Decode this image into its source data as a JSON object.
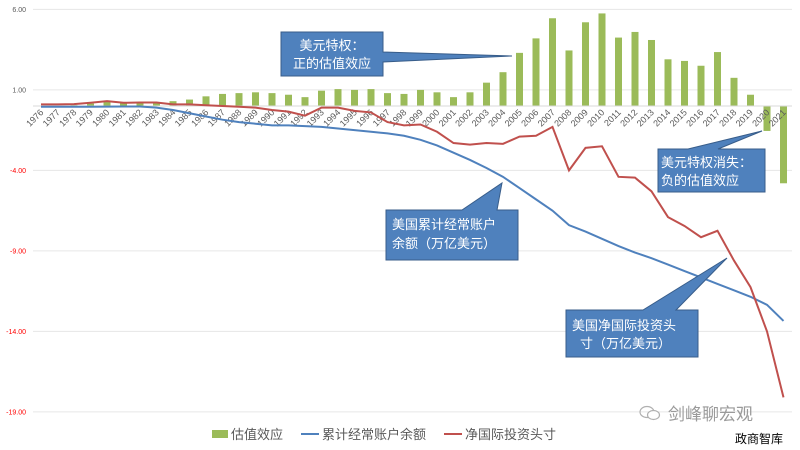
{
  "chart_data": {
    "type": "bar+line",
    "title": "",
    "xlabel": "",
    "ylabel": "",
    "ylim": [
      -19,
      6
    ],
    "yticks": [
      "6.00",
      "1.00",
      "-4.00",
      "-9.00",
      "-14.00",
      "-19.00"
    ],
    "grid": true,
    "legend_position": "bottom",
    "categories": [
      "1976",
      "1977",
      "1978",
      "1979",
      "1980",
      "1981",
      "1982",
      "1983",
      "1984",
      "1985",
      "1986",
      "1987",
      "1988",
      "1989",
      "1990",
      "1991",
      "1992",
      "1993",
      "1994",
      "1995",
      "1996",
      "1997",
      "1998",
      "1999",
      "2000",
      "2001",
      "2002",
      "2003",
      "2004",
      "2005",
      "2006",
      "2007",
      "2008",
      "2009",
      "2010",
      "2011",
      "2012",
      "2013",
      "2014",
      "2015",
      "2016",
      "2017",
      "2018",
      "2019",
      "2020",
      "2021"
    ],
    "series": [
      {
        "name": "估值效应",
        "type": "bar",
        "color": "#9bbb59",
        "values": [
          0.0,
          0.02,
          0.05,
          0.15,
          0.25,
          0.2,
          0.2,
          0.2,
          0.3,
          0.4,
          0.6,
          0.75,
          0.8,
          0.85,
          0.8,
          0.7,
          0.55,
          0.95,
          1.05,
          1.0,
          1.05,
          0.8,
          0.75,
          1.0,
          0.85,
          0.55,
          0.85,
          1.45,
          2.1,
          3.3,
          4.2,
          5.45,
          3.45,
          5.2,
          5.75,
          4.25,
          4.6,
          4.1,
          2.9,
          2.8,
          2.5,
          3.35,
          1.75,
          0.7,
          -1.55,
          -4.8
        ]
      },
      {
        "name": "累计经常账户余额",
        "type": "line",
        "color": "#4f81bd",
        "values": [
          -0.05,
          -0.05,
          -0.05,
          -0.05,
          -0.04,
          -0.03,
          -0.03,
          -0.1,
          -0.25,
          -0.45,
          -0.65,
          -0.85,
          -1.0,
          -1.1,
          -1.2,
          -1.2,
          -1.25,
          -1.3,
          -1.4,
          -1.5,
          -1.6,
          -1.7,
          -1.85,
          -2.1,
          -2.45,
          -2.9,
          -3.35,
          -3.85,
          -4.4,
          -5.1,
          -5.8,
          -6.5,
          -7.4,
          -7.8,
          -8.25,
          -8.7,
          -9.1,
          -9.45,
          -9.85,
          -10.25,
          -10.65,
          -11.05,
          -11.45,
          -11.85,
          -12.35,
          -13.35
        ]
      },
      {
        "name": "净国际投资头寸",
        "type": "line",
        "color": "#c0504d",
        "values": [
          0.1,
          0.1,
          0.12,
          0.2,
          0.3,
          0.2,
          0.22,
          0.22,
          0.1,
          0.1,
          0.05,
          0.0,
          -0.05,
          -0.1,
          -0.25,
          -0.35,
          -0.6,
          -0.1,
          -0.1,
          -0.3,
          -0.4,
          -1.0,
          -1.2,
          -1.15,
          -1.6,
          -2.3,
          -2.4,
          -2.3,
          -2.35,
          -1.9,
          -1.85,
          -1.3,
          -4.0,
          -2.6,
          -2.5,
          -4.4,
          -4.45,
          -5.3,
          -6.9,
          -7.45,
          -8.15,
          -7.75,
          -9.6,
          -11.25,
          -14.0,
          -18.1
        ]
      }
    ],
    "annotations": [
      {
        "text": "美元特权：\n正的估值效应",
        "points_to": "2005"
      },
      {
        "text": "美国累计经常账户\n余额（万亿美元）",
        "points_to": "blue line ~2004"
      },
      {
        "text": "美元特权消失：\n负的估值效应",
        "points_to": "2020"
      },
      {
        "text": "美国净国际投资头\n寸（万亿美元）",
        "points_to": "red line ~2018"
      }
    ]
  },
  "callouts": {
    "c1": {
      "line1": "美元特权：",
      "line2": "正的估值效应"
    },
    "c2": {
      "line1": "美国累计经常账户",
      "line2": "余额（万亿美元）"
    },
    "c3": {
      "line1": "美元特权消失：",
      "line2": "负的估值效应"
    },
    "c4": {
      "line1": "美国净国际投资头",
      "line2": "寸（万亿美元）"
    }
  },
  "legend": {
    "bar": "估值效应",
    "blue": "累计经常账户余额",
    "red": "净国际投资头寸"
  },
  "watermark": {
    "text": "剑峰聊宏观",
    "icon": "wechat-icon"
  },
  "signature": "政商智库",
  "colors": {
    "bar": "#9bbb59",
    "blue": "#4f81bd",
    "red": "#c0504d",
    "callout": "#4f81bd",
    "ytick_pos": "#595959",
    "ytick_neg": "#ff0000"
  }
}
